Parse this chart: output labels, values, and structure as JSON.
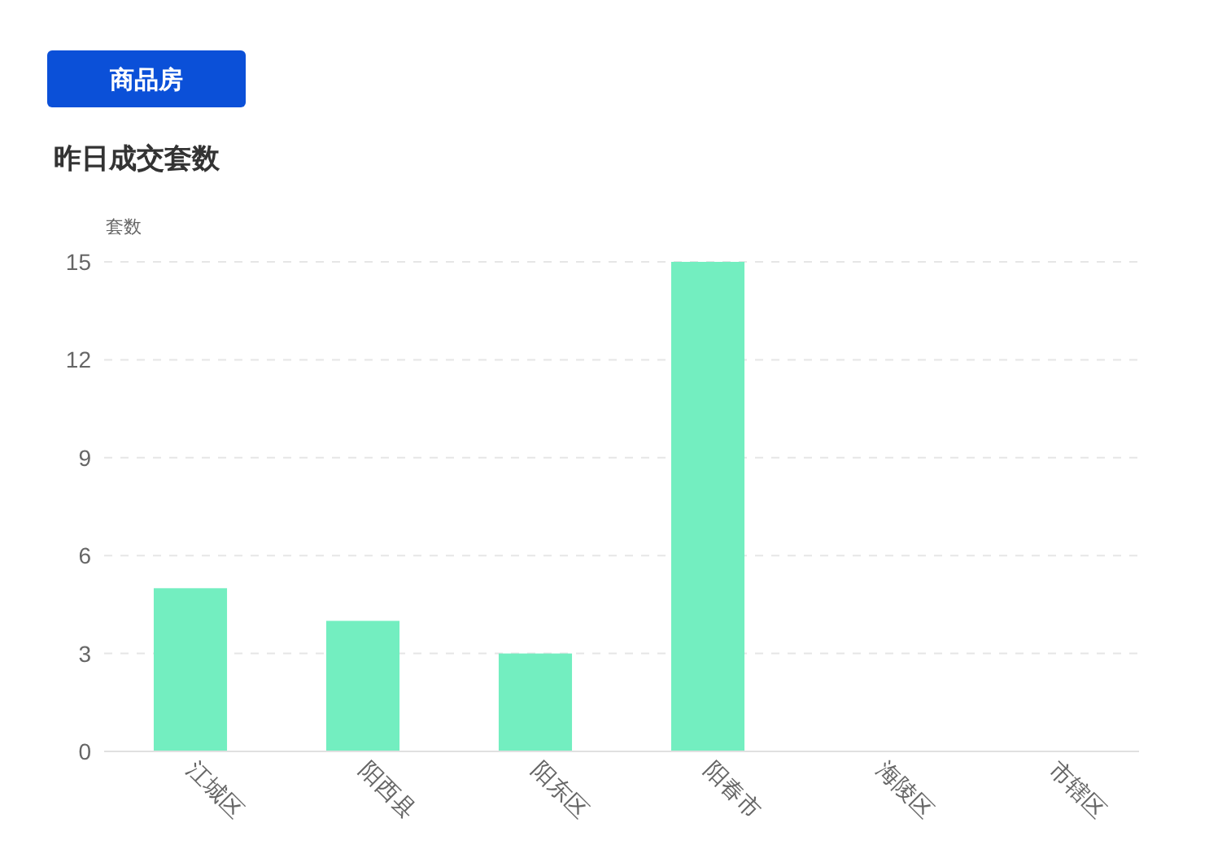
{
  "chart_data": {
    "type": "bar",
    "title": "昨日成交套数",
    "ylabel": "套数",
    "annotations": [
      "商品房"
    ],
    "categories": [
      "江城区",
      "阳西县",
      "阳东区",
      "阳春市",
      "海陵区",
      "市辖区"
    ],
    "values": [
      5,
      4,
      3,
      15,
      0,
      0
    ],
    "color": "#73eec0",
    "ylim": [
      0,
      15
    ],
    "yticks": [
      0,
      3,
      6,
      9,
      12,
      15
    ],
    "grid": "y"
  }
}
